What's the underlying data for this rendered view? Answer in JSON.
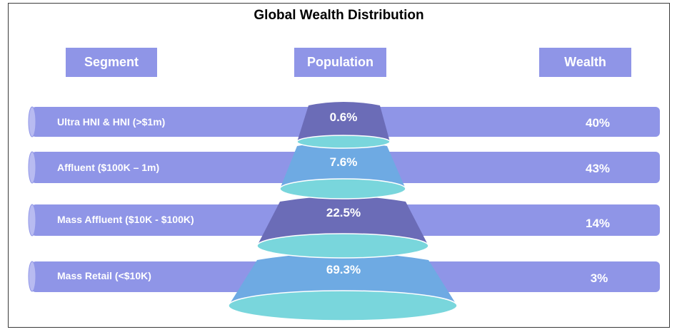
{
  "title": "Global Wealth Distribution",
  "headers": {
    "segment": "Segment",
    "population": "Population",
    "wealth": "Wealth"
  },
  "rows": [
    {
      "segment": "Ultra HNI & HNI (>$1m)",
      "population": "0.6%",
      "wealth": "40%"
    },
    {
      "segment": "Affluent ($100K – 1m)",
      "population": "7.6%",
      "wealth": "43%"
    },
    {
      "segment": "Mass Affluent ($10K - $100K)",
      "population": "22.5%",
      "wealth": "14%"
    },
    {
      "segment": "Mass Retail (<$10K)",
      "population": "69.3%",
      "wealth": "3%"
    }
  ],
  "colors": {
    "band": "#8f95e7",
    "band_cap": "#b8bbf1",
    "header_box": "#8f95e7",
    "tier_dark": "#6b6cb7",
    "tier_light": "#6eaae3",
    "tier_base": "#79d6dc"
  }
}
